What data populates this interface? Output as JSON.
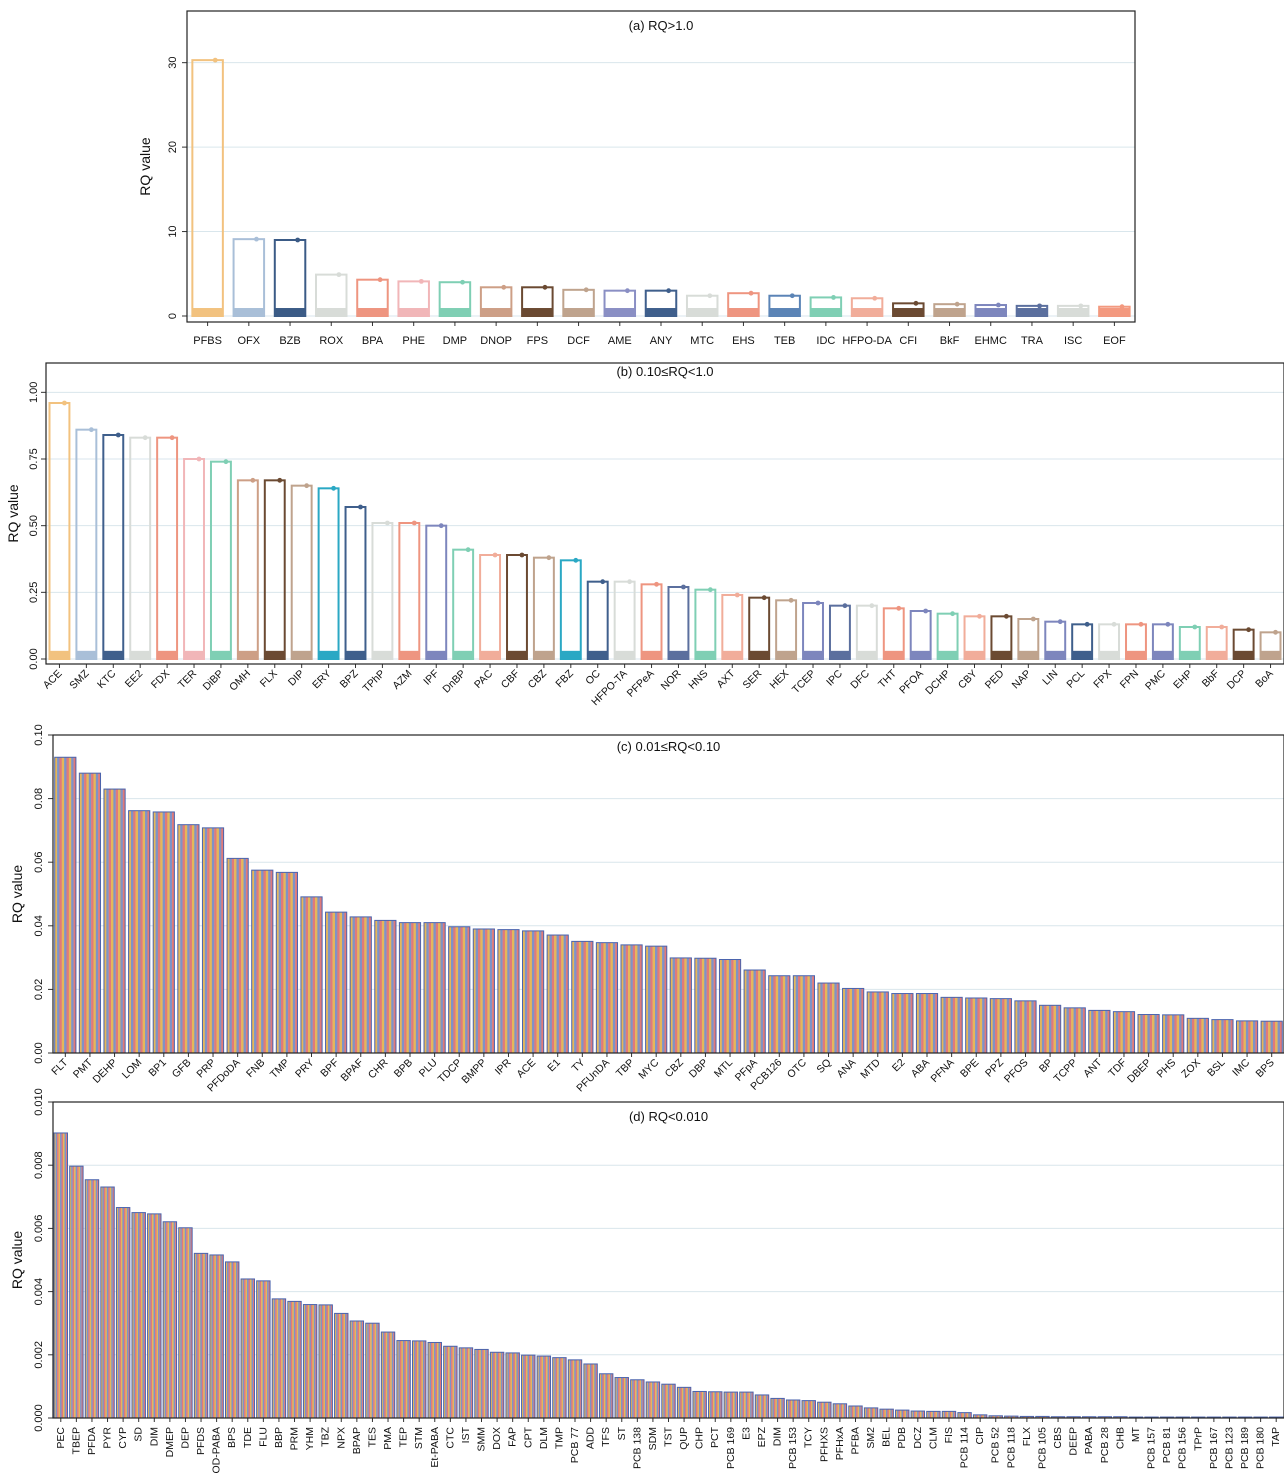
{
  "chart_data": [
    {
      "type": "bar",
      "title": "(a) RQ>1.0",
      "xlabel": "",
      "ylabel": "RQ value",
      "ylim": [
        0,
        31.5
      ],
      "yticks": [
        0,
        10,
        20,
        30
      ],
      "grid": true,
      "categories": [
        "PFBS",
        "OFX",
        "BZB",
        "ROX",
        "BPA",
        "PHE",
        "DMP",
        "DNOP",
        "FPS",
        "DCF",
        "AME",
        "ANY",
        "MTC",
        "EHS",
        "TEB",
        "IDC",
        "HFPO-DA",
        "CFI",
        "BkF",
        "EHMC",
        "TRA",
        "ISC",
        "EOF"
      ],
      "values": [
        30.3,
        9.1,
        9.0,
        4.9,
        4.3,
        4.1,
        4.0,
        3.4,
        3.4,
        3.1,
        3.0,
        3.0,
        2.4,
        2.7,
        2.4,
        2.2,
        2.1,
        1.5,
        1.4,
        1.3,
        1.2,
        1.2,
        1.1
      ],
      "colors": [
        "#f2c27f",
        "#a9bfd8",
        "#3b5b86",
        "#d8dcd8",
        "#ee9580",
        "#f1b6b8",
        "#7fcfb4",
        "#cd9f86",
        "#6b4a32",
        "#bfa38d",
        "#8a8fc4",
        "#3f5f8c",
        "#d8dcd8",
        "#ee9580",
        "#5b84b6",
        "#7fcfb4",
        "#f1ad9a",
        "#6b4a32",
        "#bfa38d",
        "#7d86bd",
        "#5b6f9e",
        "#d8dcd8",
        "#f3997f"
      ]
    },
    {
      "type": "bar",
      "title": "(b) 0.10≤RQ<1.0",
      "xlabel": "",
      "ylabel": "RQ value",
      "ylim": [
        0,
        1.02
      ],
      "yticks": [
        "0.00",
        "0.25",
        "0.50",
        "0.75",
        "1.00"
      ],
      "grid": true,
      "categories": [
        "ACE",
        "SMZ",
        "KTC",
        "EE2",
        "FDX",
        "TER",
        "DiBP",
        "OMH",
        "FLX",
        "DIP",
        "ERY",
        "BPZ",
        "TPhP",
        "AZM",
        "IPF",
        "DnBP",
        "PAC",
        "CBF",
        "CBZ",
        "FBZ",
        "OC",
        "HFPO-TA",
        "PFPeA",
        "NOR",
        "HNS",
        "AXT",
        "SER",
        "HEX",
        "TCEP",
        "IPC",
        "DFC",
        "THT",
        "PFOA",
        "DCHP",
        "CBY",
        "PED",
        "NAP",
        "LIN",
        "PCL",
        "FPX",
        "FPN",
        "PMC",
        "EHP",
        "BbF",
        "DCP",
        "BoA"
      ],
      "values": [
        0.96,
        0.86,
        0.84,
        0.83,
        0.83,
        0.75,
        0.74,
        0.67,
        0.67,
        0.65,
        0.64,
        0.57,
        0.51,
        0.51,
        0.5,
        0.41,
        0.39,
        0.39,
        0.38,
        0.37,
        0.29,
        0.29,
        0.28,
        0.27,
        0.26,
        0.24,
        0.23,
        0.22,
        0.21,
        0.2,
        0.2,
        0.19,
        0.18,
        0.17,
        0.16,
        0.16,
        0.15,
        0.14,
        0.13,
        0.13,
        0.13,
        0.13,
        0.12,
        0.12,
        0.11,
        0.1
      ],
      "colors": [
        "#f2c27f",
        "#a9bfd8",
        "#3f5f8c",
        "#d8dcd8",
        "#ee9580",
        "#f1b6b8",
        "#7fcfb4",
        "#cd9f86",
        "#6b4a32",
        "#bfa38d",
        "#2aa8c4",
        "#3f5f8c",
        "#d8dcd8",
        "#ee9580",
        "#7d86bd",
        "#7fcfb4",
        "#f1ad9a",
        "#6b4a32",
        "#bfa38d",
        "#2aa8c4",
        "#3f5f8c",
        "#d8dcd8",
        "#ee9580",
        "#5b6f9e",
        "#7fcfb4",
        "#f1ad9a",
        "#6b4a32",
        "#bfa38d",
        "#7d86bd",
        "#5b6f9e",
        "#d8dcd8",
        "#ee9580",
        "#7d86bd",
        "#7fcfb4",
        "#f1ad9a",
        "#6b4a32",
        "#bfa38d",
        "#7d86bd",
        "#3f5f8c",
        "#d8dcd8",
        "#ee9580",
        "#7d86bd",
        "#7fcfb4",
        "#f1ad9a",
        "#6b4a32",
        "#bfa38d"
      ]
    },
    {
      "type": "bar",
      "title": "(c) 0.01≤RQ<0.10",
      "xlabel": "",
      "ylabel": "RQ value",
      "ylim": [
        0,
        0.1
      ],
      "yticks": [
        "0.00",
        "0.02",
        "0.04",
        "0.06",
        "0.08",
        "0.10"
      ],
      "grid": true,
      "bar_colors": [
        "#e5b75a",
        "#7f93c6",
        "#e07a7a"
      ],
      "categories": [
        "FLT",
        "PMT",
        "DEHP",
        "LOM",
        "BP1",
        "GFB",
        "PRP",
        "PFDoDA",
        "FNB",
        "TMP",
        "PRY",
        "BPF",
        "BPAF",
        "CHR",
        "BPB",
        "PLU",
        "TDCP",
        "BMPP",
        "IPR",
        "ACE",
        "E1",
        "TY",
        "PFUnDA",
        "TBP",
        "MYC",
        "CBZ",
        "DBP",
        "MTL",
        "PFpA",
        "PCB126",
        "OTC",
        "SQ",
        "ANA",
        "MTD",
        "E2",
        "ABA",
        "PFNA",
        "BPE",
        "PPZ",
        "PFOS",
        "BP",
        "TCPP",
        "ANT",
        "TDF",
        "DBEP",
        "PHS",
        "ZOX",
        "BSL",
        "IMC",
        "BPS"
      ],
      "values": [
        0.093,
        0.088,
        0.083,
        0.0762,
        0.0758,
        0.0718,
        0.0708,
        0.0612,
        0.0575,
        0.0568,
        0.0491,
        0.0443,
        0.0428,
        0.0417,
        0.041,
        0.041,
        0.0397,
        0.039,
        0.0388,
        0.0384,
        0.0371,
        0.0351,
        0.0347,
        0.034,
        0.0336,
        0.0299,
        0.0298,
        0.0294,
        0.0261,
        0.0243,
        0.0243,
        0.022,
        0.0203,
        0.0192,
        0.0187,
        0.0187,
        0.0175,
        0.0173,
        0.0171,
        0.0164,
        0.015,
        0.0142,
        0.0134,
        0.013,
        0.0121,
        0.012,
        0.0109,
        0.0105,
        0.0101,
        0.01
      ]
    },
    {
      "type": "bar",
      "title": "(d) RQ<0.010",
      "xlabel": "",
      "ylabel": "RQ value",
      "ylim": [
        0,
        0.01
      ],
      "yticks": [
        "0.000",
        "0.002",
        "0.004",
        "0.006",
        "0.008",
        "0.010"
      ],
      "grid": true,
      "bar_colors": [
        "#e5b75a",
        "#7f93c6",
        "#e07a7a"
      ],
      "categories": [
        "PEC",
        "TBEP",
        "PFDA",
        "PYR",
        "CYP",
        "SD",
        "DIM",
        "DMEP",
        "DEP",
        "PFDS",
        "OD-PABA",
        "BPS",
        "TDE",
        "FLU",
        "BBP",
        "PRM",
        "YHM",
        "TBZ",
        "NPX",
        "BPAP",
        "TES",
        "PMA",
        "TEP",
        "STM",
        "Et-PABA",
        "CTC",
        "IST",
        "SMM",
        "DOX",
        "FAP",
        "CPT",
        "DLM",
        "TMP",
        "PCB 77",
        "ADD",
        "TFS",
        "ST",
        "PCB 138",
        "SDM",
        "TST",
        "QUP",
        "CHP",
        "PCT",
        "PCB 169",
        "E3",
        "EPZ",
        "DIM",
        "PCB 153",
        "TCY",
        "PFHXS",
        "PFHxA",
        "PFBA",
        "SM2",
        "BEL",
        "PDB",
        "DCZ",
        "CLM",
        "FIS",
        "PCB 114",
        "CIP",
        "PCB 52",
        "PCB 118",
        "FLX",
        "PCB 105",
        "CBS",
        "DEEP",
        "PABA",
        "PCB 28",
        "CHB",
        "MT",
        "PCB 157",
        "PCB 81",
        "PCB 156",
        "TPrP",
        "PCB 167",
        "PCB 123",
        "PCB 189",
        "PCB 180",
        "TAP"
      ],
      "values": [
        0.00902,
        0.00797,
        0.00754,
        0.00731,
        0.00666,
        0.0065,
        0.00646,
        0.00621,
        0.00602,
        0.00521,
        0.00516,
        0.00494,
        0.0044,
        0.00434,
        0.00377,
        0.00369,
        0.00359,
        0.00358,
        0.00331,
        0.00307,
        0.003,
        0.00272,
        0.00245,
        0.00244,
        0.00239,
        0.00227,
        0.00222,
        0.00217,
        0.00208,
        0.00206,
        0.00199,
        0.00196,
        0.00191,
        0.00184,
        0.00171,
        0.0014,
        0.00128,
        0.00121,
        0.00114,
        0.00107,
        0.00097,
        0.00084,
        0.00083,
        0.00082,
        0.00082,
        0.00073,
        0.00062,
        0.00057,
        0.00055,
        0.0005,
        0.00045,
        0.00038,
        0.00032,
        0.00028,
        0.00025,
        0.00022,
        0.00021,
        0.00021,
        0.00017,
        0.0001,
        7e-05,
        6e-05,
        5e-05,
        5e-05,
        4e-05,
        4e-05,
        4e-05,
        4e-05,
        4e-05,
        3e-05,
        3e-05,
        3e-05,
        3e-05,
        3e-05,
        3e-05,
        3e-05,
        3e-05,
        3e-05,
        3e-05
      ]
    }
  ]
}
